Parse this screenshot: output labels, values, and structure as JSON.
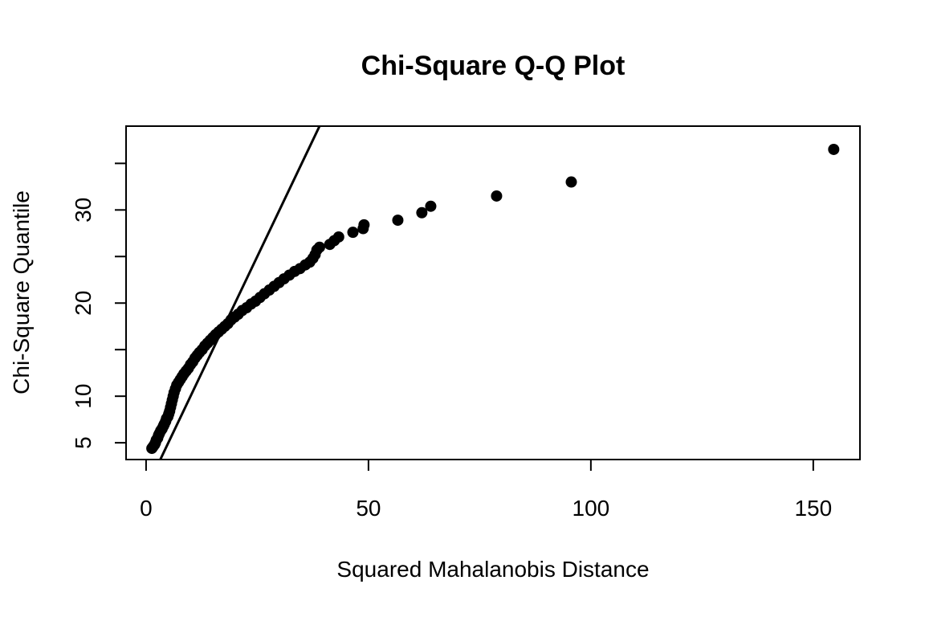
{
  "chart_data": {
    "type": "scatter",
    "title": "Chi-Square Q-Q Plot",
    "xlabel": "Squared Mahalanobis Distance",
    "ylabel": "Chi-Square Quantile",
    "xlim": [
      -4.5,
      160.5
    ],
    "ylim": [
      3.2,
      39
    ],
    "x_ticks": [
      0,
      50,
      100,
      150
    ],
    "y_ticks": [
      5,
      10,
      15,
      20,
      25,
      30,
      35
    ],
    "y_tick_labels": [
      "5",
      "10",
      "",
      "20",
      "",
      "30",
      ""
    ],
    "reference_line": {
      "intercept": 0,
      "slope": 1
    },
    "marker_color": "#000000",
    "grid": false,
    "points": [
      [
        1.3,
        4.4
      ],
      [
        1.6,
        4.6
      ],
      [
        1.9,
        4.8
      ],
      [
        2.1,
        5.0
      ],
      [
        2.3,
        5.3
      ],
      [
        2.6,
        5.5
      ],
      [
        2.8,
        5.8
      ],
      [
        3.0,
        6.0
      ],
      [
        3.3,
        6.3
      ],
      [
        3.6,
        6.5
      ],
      [
        3.9,
        6.8
      ],
      [
        4.1,
        7.0
      ],
      [
        4.4,
        7.3
      ],
      [
        4.6,
        7.6
      ],
      [
        4.9,
        7.8
      ],
      [
        5.1,
        8.1
      ],
      [
        5.3,
        8.4
      ],
      [
        5.5,
        8.8
      ],
      [
        5.7,
        9.2
      ],
      [
        5.9,
        9.6
      ],
      [
        6.1,
        10.0
      ],
      [
        6.3,
        10.4
      ],
      [
        6.6,
        10.8
      ],
      [
        6.9,
        11.2
      ],
      [
        7.3,
        11.5
      ],
      [
        7.7,
        11.8
      ],
      [
        8.1,
        12.1
      ],
      [
        8.5,
        12.4
      ],
      [
        9.0,
        12.7
      ],
      [
        9.5,
        13.0
      ],
      [
        10.0,
        13.4
      ],
      [
        10.5,
        13.7
      ],
      [
        11.0,
        14.1
      ],
      [
        11.5,
        14.4
      ],
      [
        12.0,
        14.7
      ],
      [
        12.6,
        15.0
      ],
      [
        13.2,
        15.4
      ],
      [
        13.8,
        15.7
      ],
      [
        14.4,
        16.0
      ],
      [
        15.0,
        16.3
      ],
      [
        15.6,
        16.6
      ],
      [
        16.3,
        16.9
      ],
      [
        17.0,
        17.2
      ],
      [
        17.7,
        17.5
      ],
      [
        18.4,
        17.8
      ],
      [
        19.1,
        18.2
      ],
      [
        19.9,
        18.5
      ],
      [
        20.7,
        18.8
      ],
      [
        21.6,
        19.2
      ],
      [
        22.6,
        19.5
      ],
      [
        23.6,
        19.9
      ],
      [
        24.6,
        20.2
      ],
      [
        25.6,
        20.6
      ],
      [
        26.6,
        21.0
      ],
      [
        27.7,
        21.4
      ],
      [
        28.8,
        21.8
      ],
      [
        29.9,
        22.2
      ],
      [
        31.0,
        22.6
      ],
      [
        32.2,
        23.0
      ],
      [
        33.4,
        23.4
      ],
      [
        34.6,
        23.7
      ],
      [
        35.8,
        24.1
      ],
      [
        36.8,
        24.4
      ],
      [
        37.5,
        24.8
      ],
      [
        38.0,
        25.2
      ],
      [
        38.4,
        25.7
      ],
      [
        39.0,
        26.0
      ],
      [
        41.3,
        26.3
      ],
      [
        42.3,
        26.7
      ],
      [
        43.3,
        27.1
      ],
      [
        46.5,
        27.6
      ],
      [
        48.8,
        28.0
      ],
      [
        49.0,
        28.4
      ],
      [
        56.6,
        28.9
      ],
      [
        62.0,
        29.7
      ],
      [
        64.0,
        30.4
      ],
      [
        78.8,
        31.5
      ],
      [
        95.6,
        33.0
      ],
      [
        154.6,
        36.5
      ]
    ]
  }
}
